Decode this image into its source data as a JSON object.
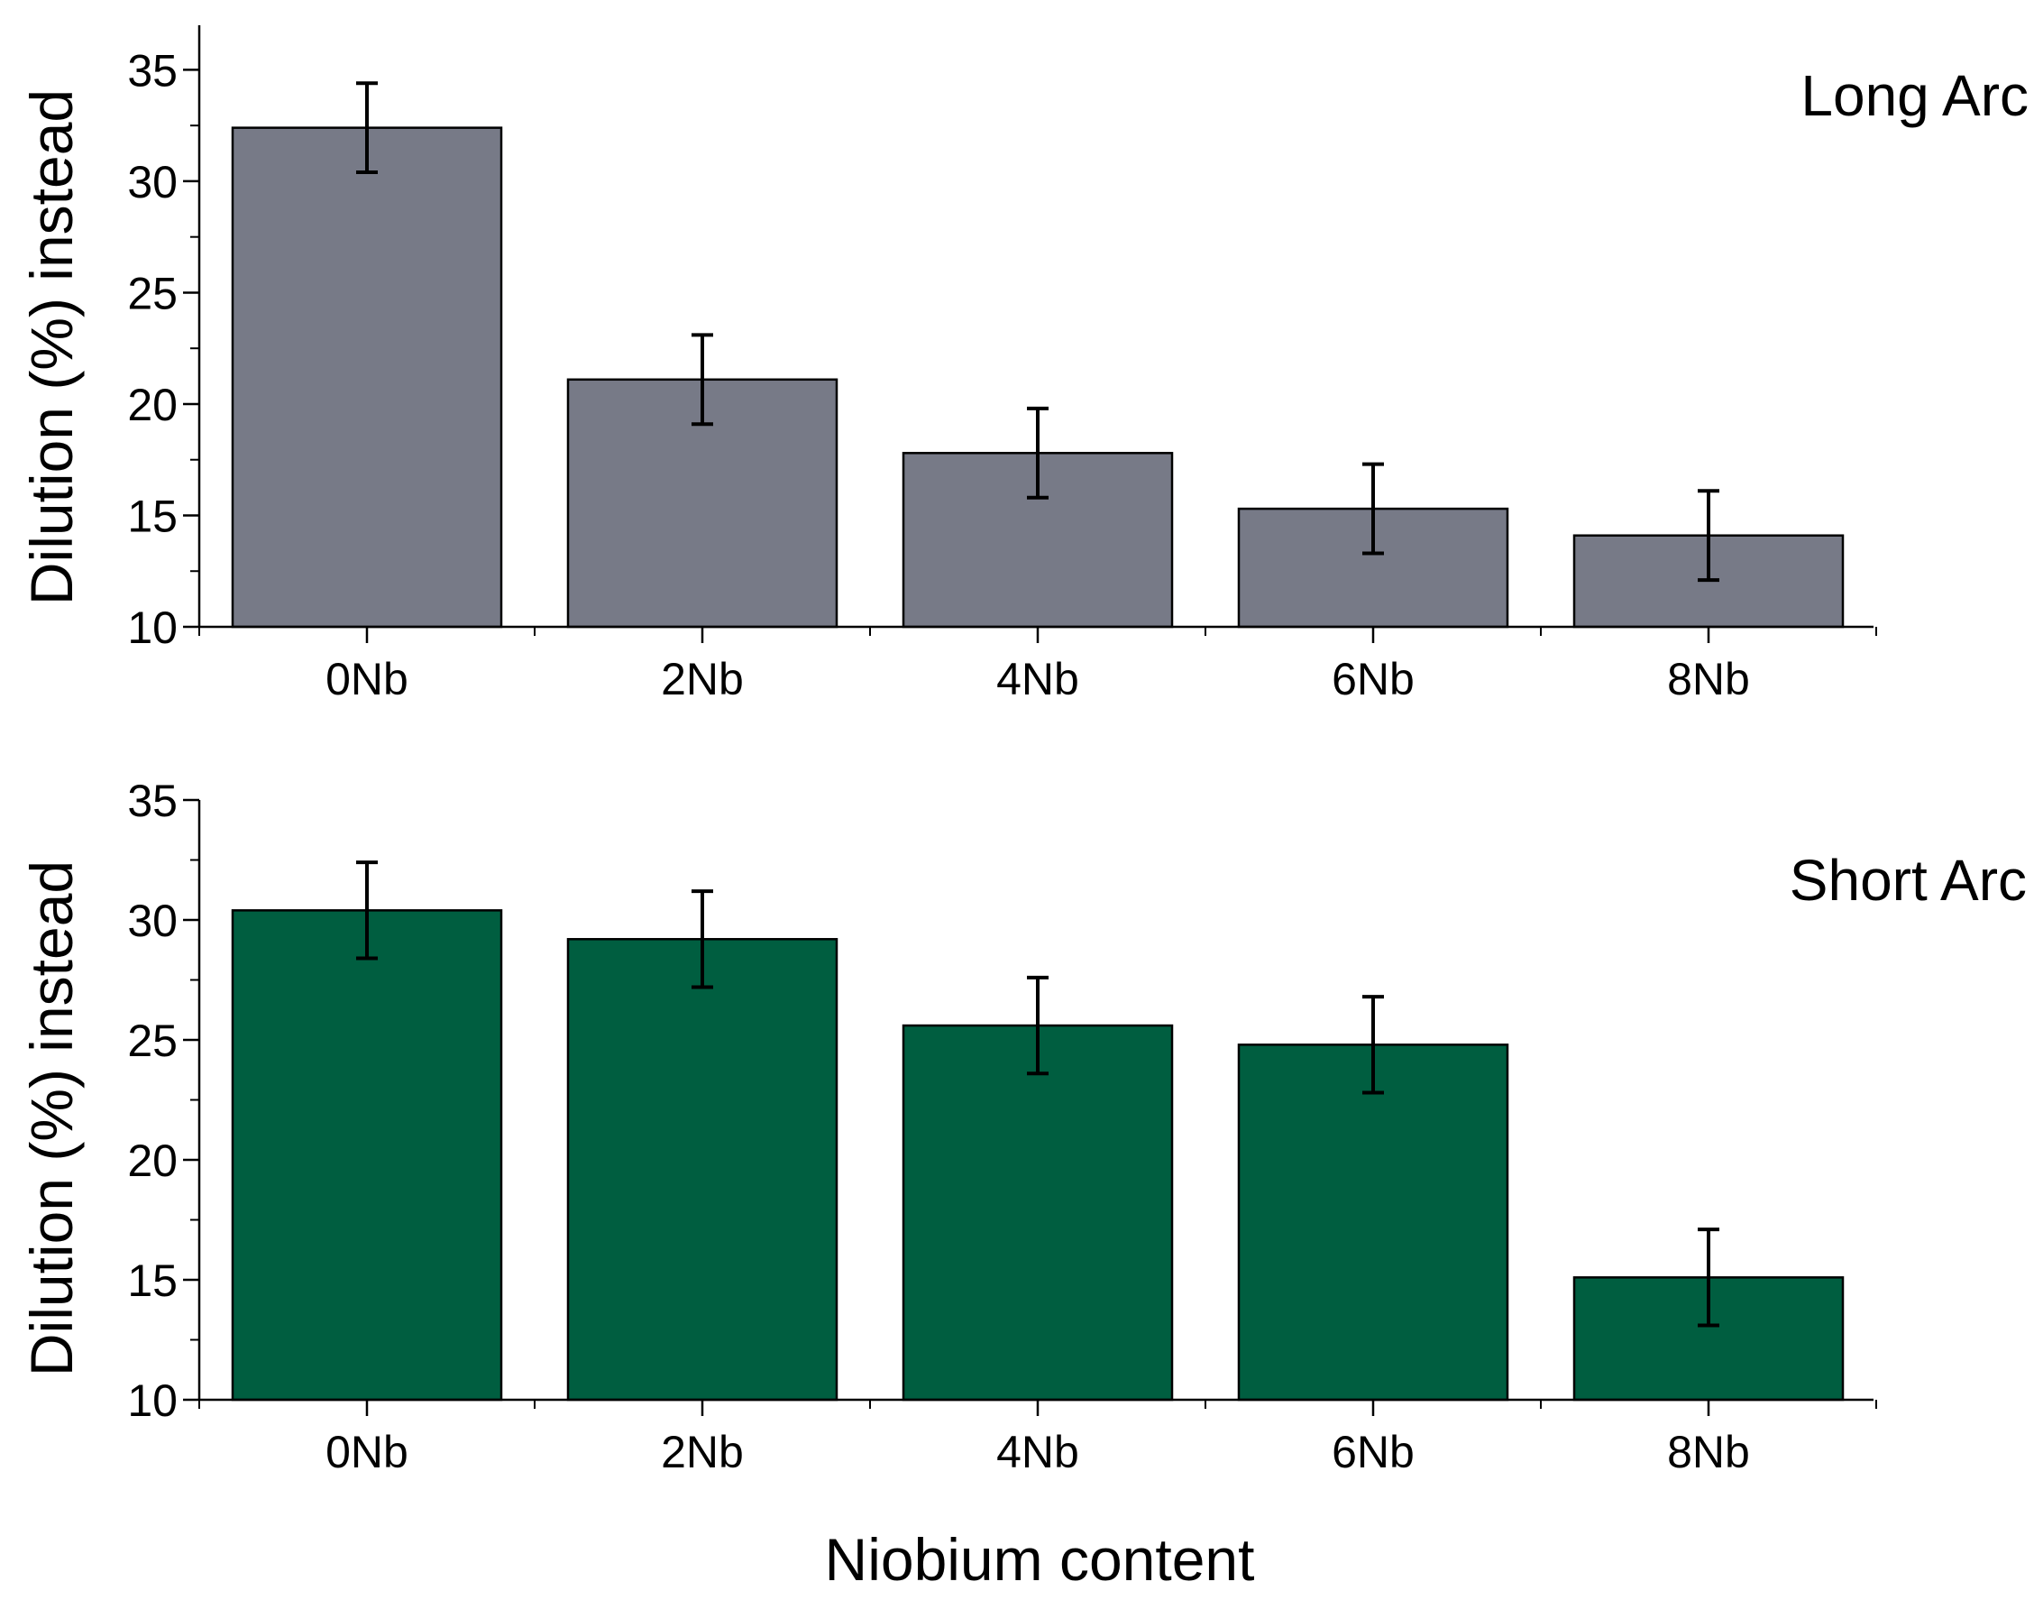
{
  "colors": {
    "long_arc_bar": "#777a87",
    "short_arc_bar": "#005e40",
    "axis": "#000000",
    "error_bar": "#000000"
  },
  "chart_data": [
    {
      "type": "bar",
      "panel_label": "Long Arc",
      "ylabel": "Dilution (%) instead",
      "xlabel": "",
      "categories": [
        "0Nb",
        "2Nb",
        "4Nb",
        "6Nb",
        "8Nb"
      ],
      "values": [
        32.4,
        21.1,
        17.8,
        15.3,
        14.1
      ],
      "errors": [
        2.0,
        2.0,
        2.0,
        2.0,
        2.0
      ],
      "ylim": [
        10,
        37
      ],
      "yticks": [
        10,
        15,
        20,
        25,
        30,
        35
      ],
      "legend": "none",
      "grid": false,
      "color": "#777a87"
    },
    {
      "type": "bar",
      "panel_label": "Short Arc",
      "ylabel": "Dilution (%) instead",
      "xlabel": "Niobium content",
      "categories": [
        "0Nb",
        "2Nb",
        "4Nb",
        "6Nb",
        "8Nb"
      ],
      "values": [
        30.4,
        29.2,
        25.6,
        24.8,
        15.1
      ],
      "errors": [
        2.0,
        2.0,
        2.0,
        2.0,
        2.0
      ],
      "ylim": [
        10,
        35
      ],
      "yticks": [
        10,
        15,
        20,
        25,
        30,
        35
      ],
      "legend": "none",
      "grid": false,
      "color": "#005e40"
    }
  ]
}
